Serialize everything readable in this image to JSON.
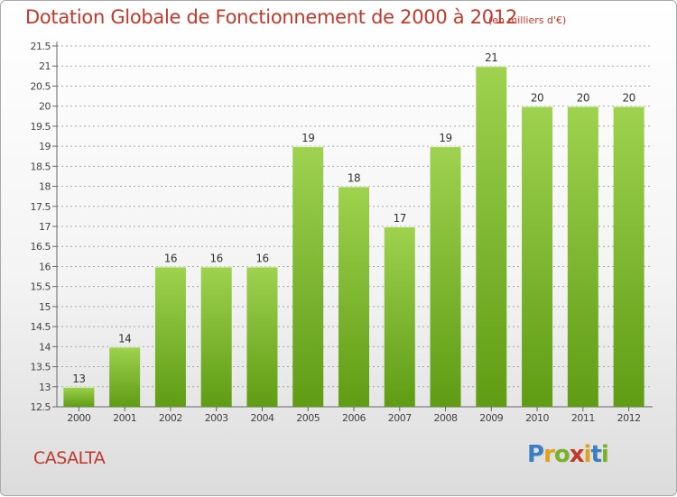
{
  "header": {
    "title": "Dotation Globale de Fonctionnement de 2000 à 2012",
    "subtitle": "(en milliers d'€)"
  },
  "footer": {
    "city": "CASALTA",
    "logo": "Proxiti"
  },
  "colors": {
    "accent": "#c0392b",
    "bar_top": "#9ed24f",
    "bar_bottom": "#5f9c14",
    "grid": "#9a9a9a"
  },
  "chart_data": {
    "type": "bar",
    "title": "Dotation Globale de Fonctionnement de 2000 à 2012",
    "subtitle": "(en milliers d'€)",
    "categories": [
      "2000",
      "2001",
      "2002",
      "2003",
      "2004",
      "2005",
      "2006",
      "2007",
      "2008",
      "2009",
      "2010",
      "2011",
      "2012"
    ],
    "values": [
      13,
      14,
      16,
      16,
      16,
      19,
      18,
      17,
      19,
      21,
      20,
      20,
      20
    ],
    "data_labels": [
      "13",
      "14",
      "16",
      "16",
      "16",
      "19",
      "18",
      "17",
      "19",
      "21",
      "20",
      "20",
      "20"
    ],
    "yticks": [
      "12.5",
      "13",
      "13.5",
      "14",
      "14.5",
      "15",
      "15.5",
      "16",
      "16.5",
      "17",
      "17.5",
      "18",
      "18.5",
      "19",
      "19.5",
      "20",
      "20.5",
      "21",
      "21.5"
    ],
    "ylim": [
      12.5,
      21.5
    ],
    "grid": true,
    "xlabel": "",
    "ylabel": ""
  }
}
